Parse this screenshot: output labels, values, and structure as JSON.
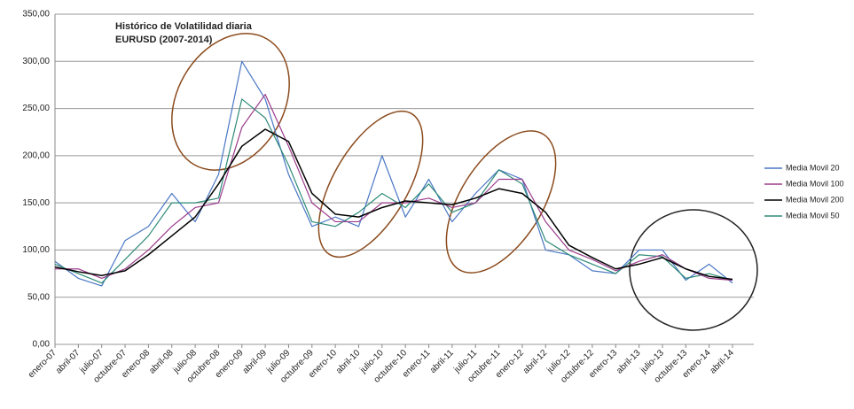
{
  "chart_data": {
    "type": "line",
    "title": "Histórico de Volatilidad diaria",
    "subtitle": "EURUSD  (2007-2014)",
    "categories": [
      "enero-07",
      "abril-07",
      "julio-07",
      "octubre-07",
      "enero-08",
      "abril-08",
      "julio-08",
      "octubre-08",
      "enero-09",
      "abril-09",
      "julio-09",
      "octubre-09",
      "enero-10",
      "abril-10",
      "julio-10",
      "octubre-10",
      "enero-11",
      "abril-11",
      "julio-11",
      "octubre-11",
      "enero-12",
      "abril-12",
      "julio-12",
      "octubre-12",
      "enero-13",
      "abril-13",
      "julio-13",
      "octubre-13",
      "enero-14",
      "abril-14"
    ],
    "series": [
      {
        "name": "Media Movil 20",
        "color": "#4a77c4",
        "values": [
          88,
          70,
          62,
          110,
          125,
          160,
          130,
          180,
          300,
          260,
          180,
          125,
          135,
          125,
          200,
          135,
          175,
          130,
          160,
          185,
          175,
          100,
          95,
          78,
          75,
          100,
          100,
          68,
          85,
          65
        ]
      },
      {
        "name": "Media Movil 100",
        "color": "#9b3c8c",
        "values": [
          80,
          80,
          70,
          80,
          100,
          125,
          145,
          150,
          230,
          265,
          210,
          150,
          130,
          130,
          150,
          150,
          155,
          145,
          150,
          175,
          175,
          130,
          100,
          90,
          78,
          88,
          95,
          80,
          70,
          68
        ]
      },
      {
        "name": "Media Movil 200",
        "color": "#000000",
        "values": [
          82,
          77,
          73,
          78,
          95,
          115,
          135,
          170,
          210,
          228,
          215,
          160,
          138,
          135,
          145,
          152,
          150,
          148,
          155,
          165,
          160,
          140,
          105,
          92,
          80,
          85,
          92,
          80,
          72,
          69
        ]
      },
      {
        "name": "Media Movil 50",
        "color": "#2e8b78",
        "values": [
          85,
          75,
          65,
          90,
          115,
          150,
          150,
          155,
          260,
          240,
          190,
          130,
          125,
          140,
          160,
          145,
          170,
          140,
          150,
          185,
          170,
          110,
          95,
          85,
          75,
          95,
          93,
          70,
          75,
          68
        ]
      }
    ],
    "ylim": [
      0,
      350
    ],
    "yticks": [
      {
        "value": 0,
        "label": "0,00"
      },
      {
        "value": 50,
        "label": "50,00"
      },
      {
        "value": 100,
        "label": "100,00"
      },
      {
        "value": 150,
        "label": "150,00"
      },
      {
        "value": 200,
        "label": "200,00"
      },
      {
        "value": 250,
        "label": "250,00"
      },
      {
        "value": 300,
        "label": "300,00"
      },
      {
        "value": 350,
        "label": "350,00"
      }
    ],
    "grid": true,
    "legend": "right"
  }
}
